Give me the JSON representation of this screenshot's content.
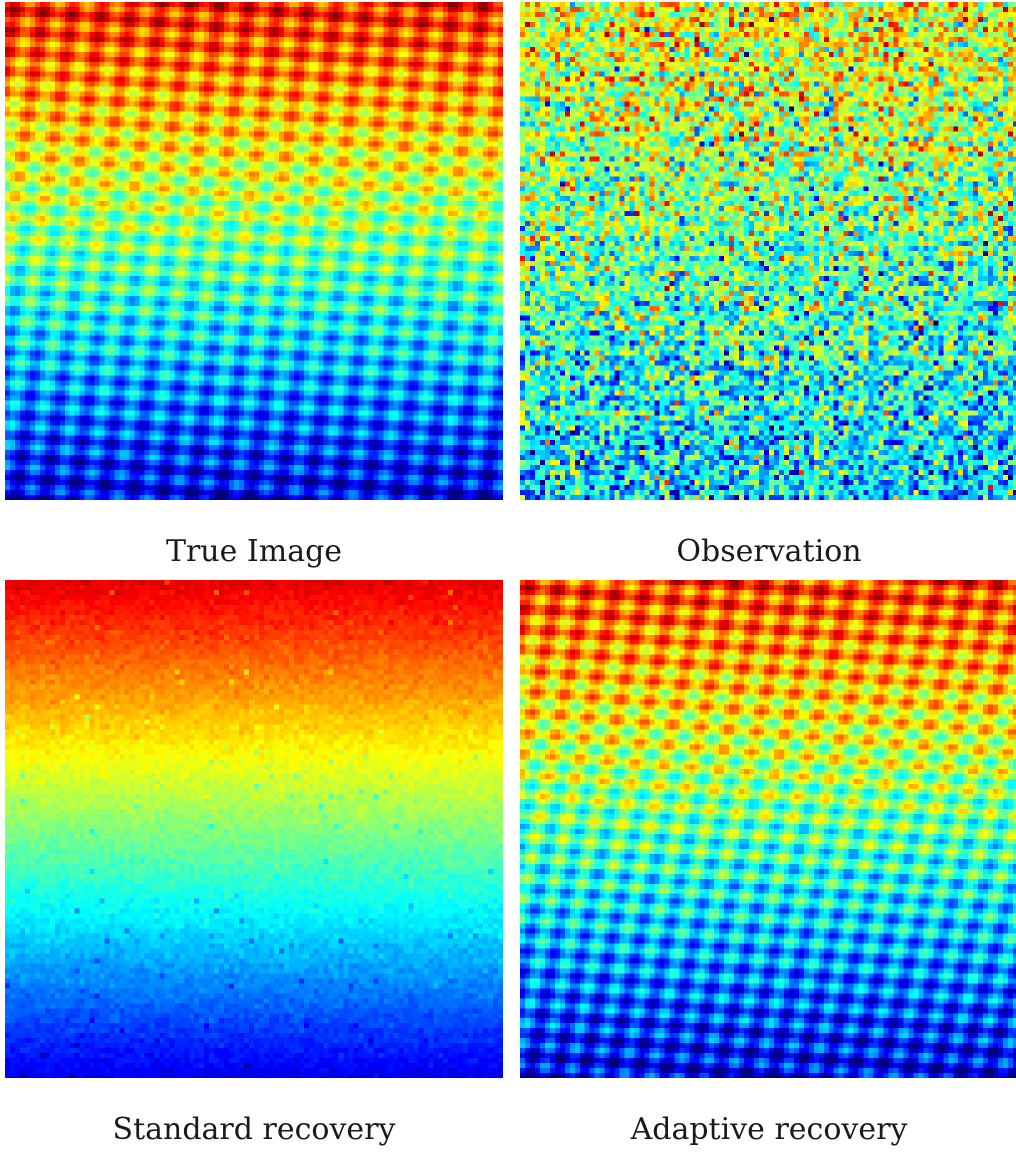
{
  "figure": {
    "panels": [
      {
        "id": "true",
        "caption": "True Image",
        "content": "periodic-lattice-gradient"
      },
      {
        "id": "obs",
        "caption": "Observation",
        "content": "noisy-lattice"
      },
      {
        "id": "std",
        "caption": "Standard recovery",
        "content": "smooth-vertical-gradient"
      },
      {
        "id": "adp",
        "caption": "Adaptive recovery",
        "content": "recovered-lattice"
      }
    ],
    "colormap": "jet"
  }
}
